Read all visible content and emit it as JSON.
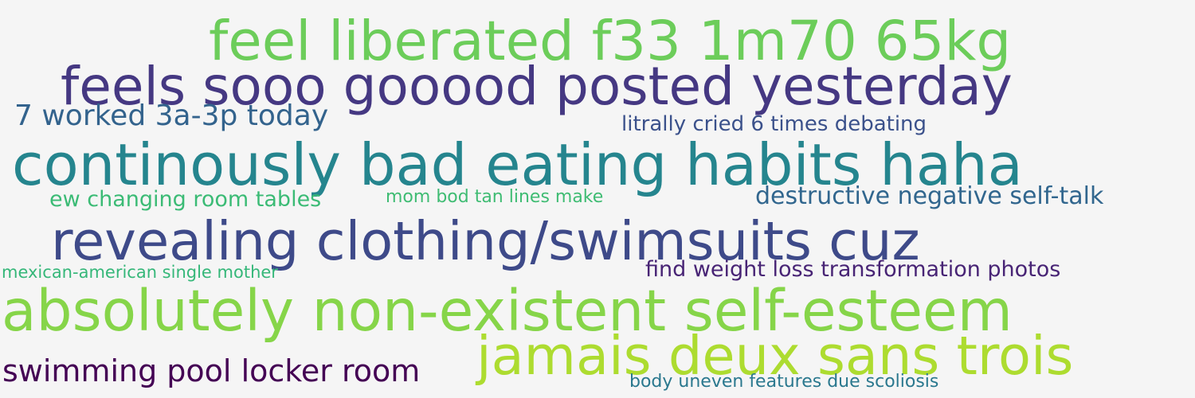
{
  "word_cloud": {
    "phrases": [
      {
        "text": "feel liberated f33 1m70 65kg",
        "color": "#6ccd5a"
      },
      {
        "text": "feels sooo gooood posted yesterday",
        "color": "#453882"
      },
      {
        "text": "7 worked 3a-3p today",
        "color": "#33638d"
      },
      {
        "text": "litrally cried 6 times debating",
        "color": "#3b518b"
      },
      {
        "text": "continously bad eating habits haha",
        "color": "#25858e"
      },
      {
        "text": "ew changing room tables",
        "color": "#3bbb75"
      },
      {
        "text": "mom bod tan lines make",
        "color": "#3fbc73"
      },
      {
        "text": "destructive negative self-talk",
        "color": "#31668e"
      },
      {
        "text": "revealing clothing/swimsuits cuz",
        "color": "#3e4a89"
      },
      {
        "text": "mexican-american single mother",
        "color": "#35b779"
      },
      {
        "text": "find weight loss transformation photos",
        "color": "#482475"
      },
      {
        "text": "absolutely non-existent self-esteem",
        "color": "#86d549"
      },
      {
        "text": "jamais deux sans trois",
        "color": "#addc30"
      },
      {
        "text": "swimming pool locker room",
        "color": "#440154"
      },
      {
        "text": "body uneven features due scoliosis",
        "color": "#2a788e"
      }
    ]
  }
}
